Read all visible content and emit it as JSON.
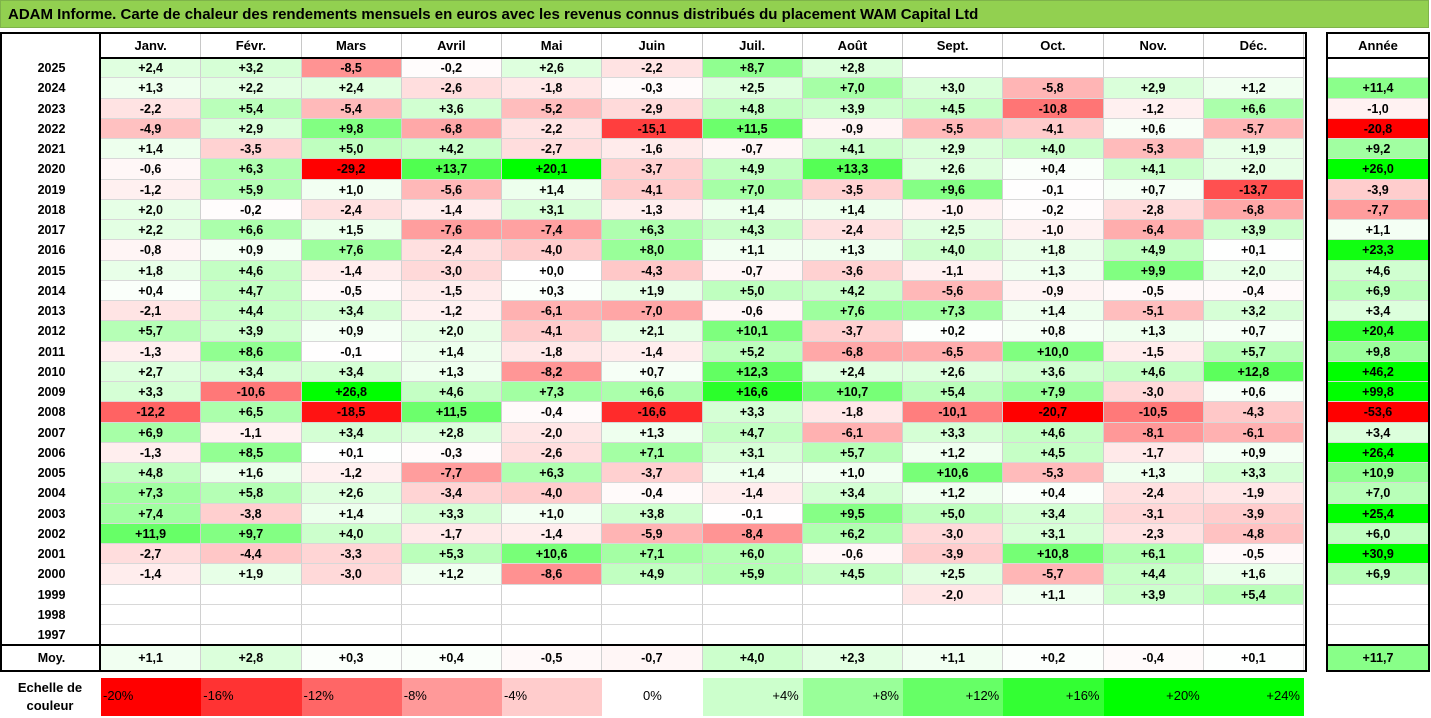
{
  "title": "ADAM Informe. Carte de chaleur des rendements mensuels en euros avec les revenus connus distribués du placement WAM Capital Ltd",
  "chart_data": {
    "type": "heatmap",
    "title": "ADAM Informe. Carte de chaleur des rendements mensuels en euros avec les revenus connus distribués du placement WAM Capital Ltd",
    "months": [
      "Janv.",
      "Févr.",
      "Mars",
      "Avril",
      "Mai",
      "Juin",
      "Juil.",
      "Août",
      "Sept.",
      "Oct.",
      "Nov.",
      "Déc."
    ],
    "annual_header": "Année",
    "rows": [
      {
        "year": "2025",
        "values": [
          "+2,4",
          "+3,2",
          "-8,5",
          "-0,2",
          "+2,6",
          "-2,2",
          "+8,7",
          "+2,8",
          "",
          "",
          "",
          ""
        ],
        "annual": ""
      },
      {
        "year": "2024",
        "values": [
          "+1,3",
          "+2,2",
          "+2,4",
          "-2,6",
          "-1,8",
          "-0,3",
          "+2,5",
          "+7,0",
          "+3,0",
          "-5,8",
          "+2,9",
          "+1,2"
        ],
        "annual": "+11,4"
      },
      {
        "year": "2023",
        "values": [
          "-2,2",
          "+5,4",
          "-5,4",
          "+3,6",
          "-5,2",
          "-2,9",
          "+4,8",
          "+3,9",
          "+4,5",
          "-10,8",
          "-1,2",
          "+6,6"
        ],
        "annual": "-1,0"
      },
      {
        "year": "2022",
        "values": [
          "-4,9",
          "+2,9",
          "+9,8",
          "-6,8",
          "-2,2",
          "-15,1",
          "+11,5",
          "-0,9",
          "-5,5",
          "-4,1",
          "+0,6",
          "-5,7"
        ],
        "annual": "-20,8"
      },
      {
        "year": "2021",
        "values": [
          "+1,4",
          "-3,5",
          "+5,0",
          "+4,2",
          "-2,7",
          "-1,6",
          "-0,7",
          "+4,1",
          "+2,9",
          "+4,0",
          "-5,3",
          "+1,9"
        ],
        "annual": "+9,2"
      },
      {
        "year": "2020",
        "values": [
          "-0,6",
          "+6,3",
          "-29,2",
          "+13,7",
          "+20,1",
          "-3,7",
          "+4,9",
          "+13,3",
          "+2,6",
          "+0,4",
          "+4,1",
          "+2,0"
        ],
        "annual": "+26,0"
      },
      {
        "year": "2019",
        "values": [
          "-1,2",
          "+5,9",
          "+1,0",
          "-5,6",
          "+1,4",
          "-4,1",
          "+7,0",
          "-3,5",
          "+9,6",
          "-0,1",
          "+0,7",
          "-13,7"
        ],
        "annual": "-3,9"
      },
      {
        "year": "2018",
        "values": [
          "+2,0",
          "-0,2",
          "-2,4",
          "-1,4",
          "+3,1",
          "-1,3",
          "+1,4",
          "+1,4",
          "-1,0",
          "-0,2",
          "-2,8",
          "-6,8"
        ],
        "annual": "-7,7"
      },
      {
        "year": "2017",
        "values": [
          "+2,2",
          "+6,6",
          "+1,5",
          "-7,6",
          "-7,4",
          "+6,3",
          "+4,3",
          "-2,4",
          "+2,5",
          "-1,0",
          "-6,4",
          "+3,9"
        ],
        "annual": "+1,1"
      },
      {
        "year": "2016",
        "values": [
          "-0,8",
          "+0,9",
          "+7,6",
          "-2,4",
          "-4,0",
          "+8,0",
          "+1,1",
          "+1,3",
          "+4,0",
          "+1,8",
          "+4,9",
          "+0,1"
        ],
        "annual": "+23,3"
      },
      {
        "year": "2015",
        "values": [
          "+1,8",
          "+4,6",
          "-1,4",
          "-3,0",
          "+0,0",
          "-4,3",
          "-0,7",
          "-3,6",
          "-1,1",
          "+1,3",
          "+9,9",
          "+2,0"
        ],
        "annual": "+4,6"
      },
      {
        "year": "2014",
        "values": [
          "+0,4",
          "+4,7",
          "-0,5",
          "-1,5",
          "+0,3",
          "+1,9",
          "+5,0",
          "+4,2",
          "-5,6",
          "-0,9",
          "-0,5",
          "-0,4"
        ],
        "annual": "+6,9"
      },
      {
        "year": "2013",
        "values": [
          "-2,1",
          "+4,4",
          "+3,4",
          "-1,2",
          "-6,1",
          "-7,0",
          "-0,6",
          "+7,6",
          "+7,3",
          "+1,4",
          "-5,1",
          "+3,2"
        ],
        "annual": "+3,4"
      },
      {
        "year": "2012",
        "values": [
          "+5,7",
          "+3,9",
          "+0,9",
          "+2,0",
          "-4,1",
          "+2,1",
          "+10,1",
          "-3,7",
          "+0,2",
          "+0,8",
          "+1,3",
          "+0,7"
        ],
        "annual": "+20,4"
      },
      {
        "year": "2011",
        "values": [
          "-1,3",
          "+8,6",
          "-0,1",
          "+1,4",
          "-1,8",
          "-1,4",
          "+5,2",
          "-6,8",
          "-6,5",
          "+10,0",
          "-1,5",
          "+5,7"
        ],
        "annual": "+9,8"
      },
      {
        "year": "2010",
        "values": [
          "+2,7",
          "+3,4",
          "+3,4",
          "+1,3",
          "-8,2",
          "+0,7",
          "+12,3",
          "+2,4",
          "+2,6",
          "+3,6",
          "+4,6",
          "+12,8"
        ],
        "annual": "+46,2"
      },
      {
        "year": "2009",
        "values": [
          "+3,3",
          "-10,6",
          "+26,8",
          "+4,6",
          "+7,3",
          "+6,6",
          "+16,6",
          "+10,7",
          "+5,4",
          "+7,9",
          "-3,0",
          "+0,6"
        ],
        "annual": "+99,8"
      },
      {
        "year": "2008",
        "values": [
          "-12,2",
          "+6,5",
          "-18,5",
          "+11,5",
          "-0,4",
          "-16,6",
          "+3,3",
          "-1,8",
          "-10,1",
          "-20,7",
          "-10,5",
          "-4,3"
        ],
        "annual": "-53,6"
      },
      {
        "year": "2007",
        "values": [
          "+6,9",
          "-1,1",
          "+3,4",
          "+2,8",
          "-2,0",
          "+1,3",
          "+4,7",
          "-6,1",
          "+3,3",
          "+4,6",
          "-8,1",
          "-6,1"
        ],
        "annual": "+3,4"
      },
      {
        "year": "2006",
        "values": [
          "-1,3",
          "+8,5",
          "+0,1",
          "-0,3",
          "-2,6",
          "+7,1",
          "+3,1",
          "+5,7",
          "+1,2",
          "+4,5",
          "-1,7",
          "+0,9"
        ],
        "annual": "+26,4"
      },
      {
        "year": "2005",
        "values": [
          "+4,8",
          "+1,6",
          "-1,2",
          "-7,7",
          "+6,3",
          "-3,7",
          "+1,4",
          "+1,0",
          "+10,6",
          "-5,3",
          "+1,3",
          "+3,3"
        ],
        "annual": "+10,9"
      },
      {
        "year": "2004",
        "values": [
          "+7,3",
          "+5,8",
          "+2,6",
          "-3,4",
          "-4,0",
          "-0,4",
          "-1,4",
          "+3,4",
          "+1,2",
          "+0,4",
          "-2,4",
          "-1,9"
        ],
        "annual": "+7,0"
      },
      {
        "year": "2003",
        "values": [
          "+7,4",
          "-3,8",
          "+1,4",
          "+3,3",
          "+1,0",
          "+3,8",
          "-0,1",
          "+9,5",
          "+5,0",
          "+3,4",
          "-3,1",
          "-3,9"
        ],
        "annual": "+25,4"
      },
      {
        "year": "2002",
        "values": [
          "+11,9",
          "+9,7",
          "+4,0",
          "-1,7",
          "-1,4",
          "-5,9",
          "-8,4",
          "+6,2",
          "-3,0",
          "+3,1",
          "-2,3",
          "-4,8"
        ],
        "annual": "+6,0"
      },
      {
        "year": "2001",
        "values": [
          "-2,7",
          "-4,4",
          "-3,3",
          "+5,3",
          "+10,6",
          "+7,1",
          "+6,0",
          "-0,6",
          "-3,9",
          "+10,8",
          "+6,1",
          "-0,5"
        ],
        "annual": "+30,9"
      },
      {
        "year": "2000",
        "values": [
          "-1,4",
          "+1,9",
          "-3,0",
          "+1,2",
          "-8,6",
          "+4,9",
          "+5,9",
          "+4,5",
          "+2,5",
          "-5,7",
          "+4,4",
          "+1,6"
        ],
        "annual": "+6,9"
      },
      {
        "year": "1999",
        "values": [
          "",
          "",
          "",
          "",
          "",
          "",
          "",
          "",
          "-2,0",
          "+1,1",
          "+3,9",
          "+5,4"
        ],
        "annual": ""
      },
      {
        "year": "1998",
        "values": [
          "",
          "",
          "",
          "",
          "",
          "",
          "",
          "",
          "",
          "",
          "",
          ""
        ],
        "annual": ""
      },
      {
        "year": "1997",
        "values": [
          "",
          "",
          "",
          "",
          "",
          "",
          "",
          "",
          "",
          "",
          "",
          ""
        ],
        "annual": ""
      }
    ],
    "average": {
      "label": "Moy.",
      "values": [
        "+1,1",
        "+2,8",
        "+0,3",
        "+0,4",
        "-0,5",
        "-0,7",
        "+4,0",
        "+2,3",
        "+1,1",
        "+0,2",
        "-0,4",
        "+0,1"
      ],
      "annual": "+11,7"
    },
    "scale": {
      "label": "Echelle de couleur",
      "steps": [
        "-20%",
        "-16%",
        "-12%",
        "-8%",
        "-4%",
        "0%",
        "+4%",
        "+8%",
        "+12%",
        "+16%",
        "+20%",
        "+24%"
      ]
    }
  }
}
